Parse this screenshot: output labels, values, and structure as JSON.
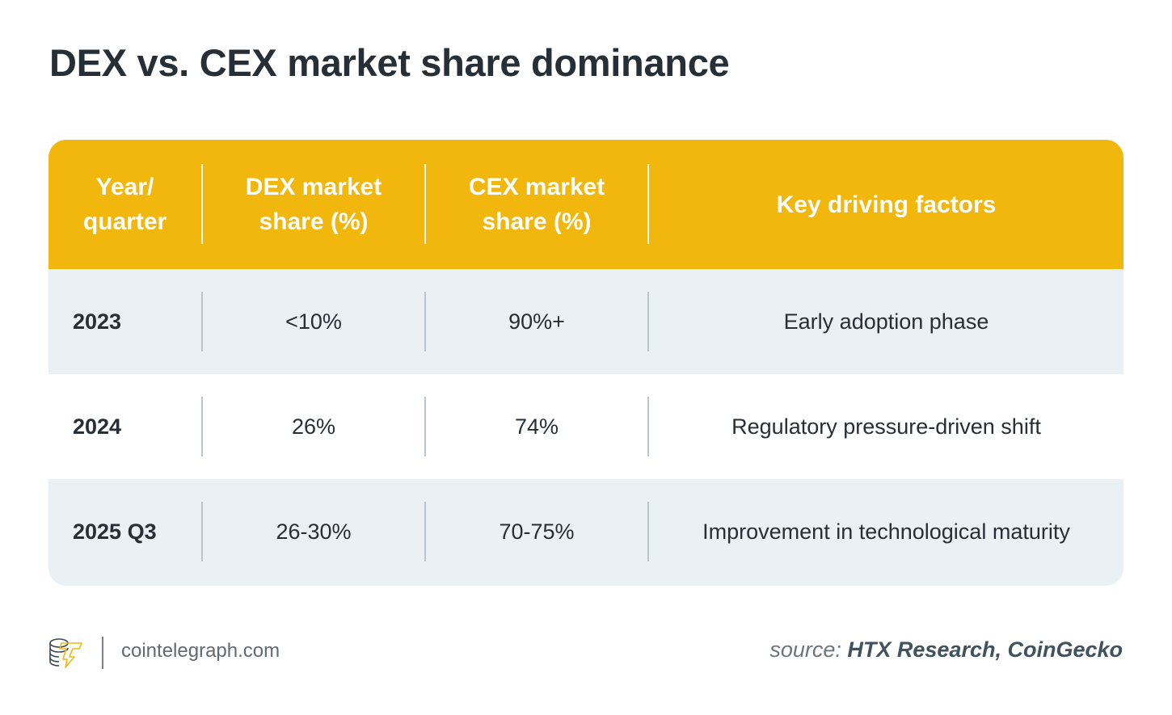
{
  "title": "DEX vs. CEX market share dominance",
  "colors": {
    "header_bg": "#f2b70d",
    "row_shade": "#eaf1f4",
    "text": "#262f36"
  },
  "chart_data": {
    "type": "table",
    "title": "DEX vs. CEX market share dominance",
    "columns": [
      "Year/ quarter",
      "DEX market share (%)",
      "CEX market share (%)",
      "Key driving factors"
    ],
    "header": {
      "col1_line1": "Year/",
      "col1_line2": "quarter",
      "col2_line1": "DEX market",
      "col2_line2": "share (%)",
      "col3_line1": "CEX market",
      "col3_line2": "share (%)",
      "col4": "Key driving factors"
    },
    "rows": [
      {
        "period": "2023",
        "dex": "<10%",
        "cex": "90%+",
        "factor": "Early adoption phase"
      },
      {
        "period": "2024",
        "dex": "26%",
        "cex": "74%",
        "factor": "Regulatory pressure-driven shift"
      },
      {
        "period": "2025 Q3",
        "dex": "26-30%",
        "cex": "70-75%",
        "factor": "Improvement in technological maturity"
      }
    ]
  },
  "footer": {
    "logo_icon": "cointelegraph-logo-icon",
    "site": "cointelegraph.com",
    "source_prefix": "source:",
    "source": "HTX Research, CoinGecko"
  }
}
